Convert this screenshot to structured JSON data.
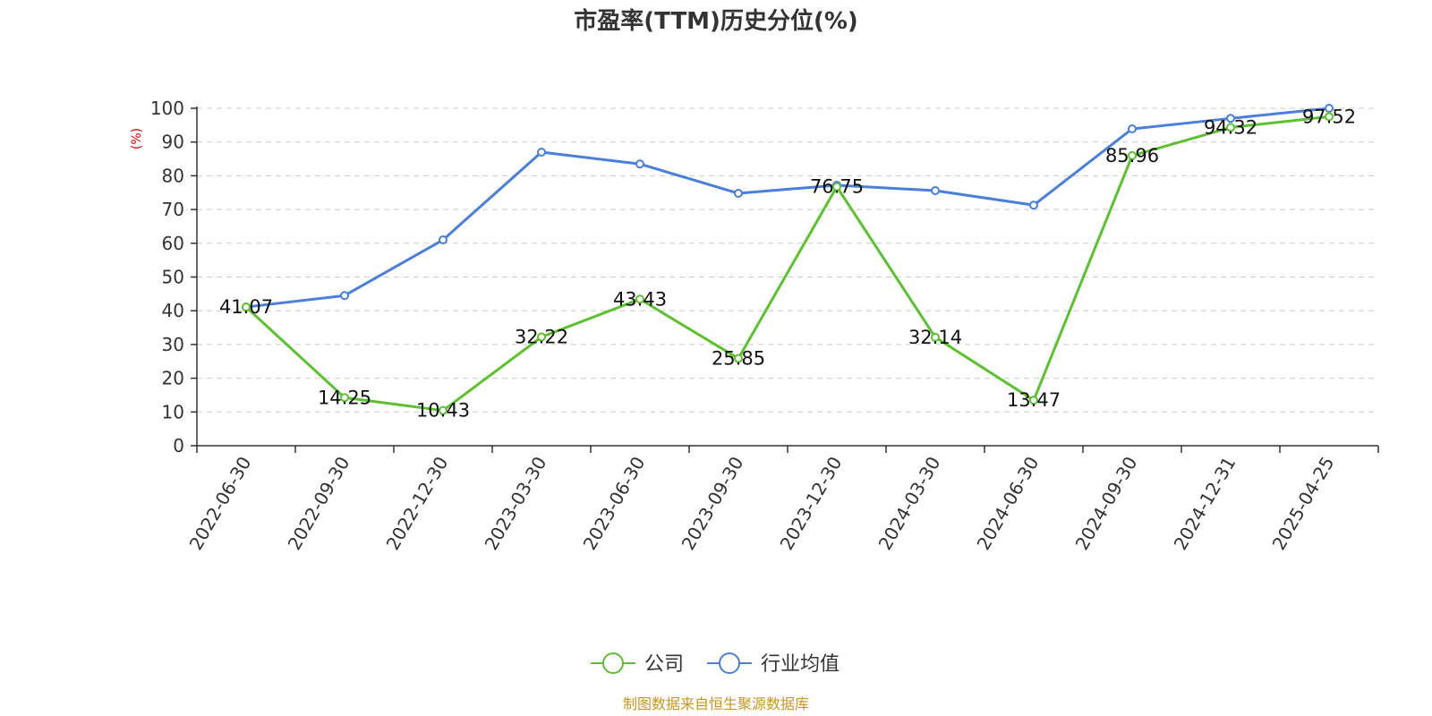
{
  "chart_data": {
    "type": "line",
    "title": "市盈率(TTM)历史分位(%)",
    "ylabel": "(%)",
    "xlabel": "",
    "ylim": [
      0,
      100
    ],
    "yticks": [
      0,
      10,
      20,
      30,
      40,
      50,
      60,
      70,
      80,
      90,
      100
    ],
    "grid": true,
    "legend_position": "bottom-center",
    "categories": [
      "2022-06-30",
      "2022-09-30",
      "2022-12-30",
      "2023-03-30",
      "2023-06-30",
      "2023-09-30",
      "2023-12-30",
      "2024-03-30",
      "2024-06-30",
      "2024-09-30",
      "2024-12-31",
      "2025-04-25"
    ],
    "series": [
      {
        "name": "公司",
        "color": "#5cc12f",
        "values": [
          41.07,
          14.25,
          10.43,
          32.22,
          43.43,
          25.85,
          76.75,
          32.14,
          13.47,
          85.96,
          94.32,
          97.52
        ],
        "show_labels": true
      },
      {
        "name": "行业均值",
        "color": "#4a7fdb",
        "values": [
          41.1,
          44.5,
          61.0,
          87.0,
          83.5,
          74.8,
          77.2,
          75.6,
          71.3,
          93.9,
          97.0,
          100.0
        ],
        "show_labels": false
      }
    ],
    "source": "制图数据来自恒生聚源数据库"
  }
}
